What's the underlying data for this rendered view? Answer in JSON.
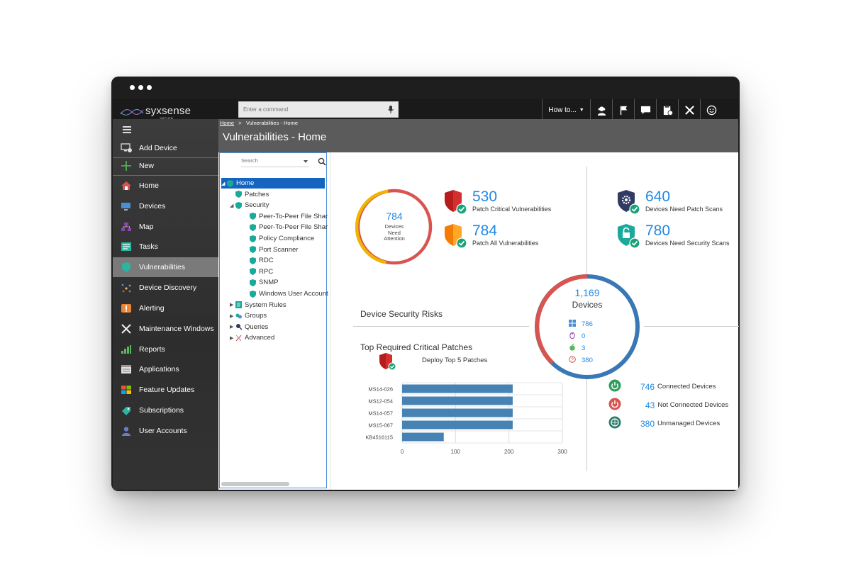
{
  "app": {
    "logo": "syxsense",
    "logo_sub": "secure"
  },
  "command": {
    "placeholder": "Enter a command"
  },
  "toolbar": {
    "howto_label": "How to...",
    "icons": [
      "support-icon",
      "flag-icon",
      "chat-icon",
      "clipboard-icon",
      "tools-icon",
      "smiley-icon"
    ]
  },
  "sidebar": {
    "items": [
      {
        "label": "Add Device",
        "icon": "monitor-add-icon"
      },
      {
        "label": "New",
        "icon": "plus-icon"
      },
      {
        "label": "Home",
        "icon": "home-icon"
      },
      {
        "label": "Devices",
        "icon": "devices-icon"
      },
      {
        "label": "Map",
        "icon": "map-icon"
      },
      {
        "label": "Tasks",
        "icon": "tasks-icon"
      },
      {
        "label": "Vulnerabilities",
        "icon": "shield-icon"
      },
      {
        "label": "Device Discovery",
        "icon": "discovery-icon"
      },
      {
        "label": "Alerting",
        "icon": "alert-icon"
      },
      {
        "label": "Maintenance Windows",
        "icon": "maintenance-icon"
      },
      {
        "label": "Reports",
        "icon": "reports-icon"
      },
      {
        "label": "Applications",
        "icon": "applications-icon"
      },
      {
        "label": "Feature Updates",
        "icon": "windows-icon"
      },
      {
        "label": "Subscriptions",
        "icon": "subscriptions-icon"
      },
      {
        "label": "User Accounts",
        "icon": "user-icon"
      }
    ],
    "active": "Vulnerabilities"
  },
  "breadcrumb": {
    "home": "Home",
    "sep": ">",
    "current": "Vulnerabilities - Home"
  },
  "page_title": "Vulnerabilities - Home",
  "tree": {
    "search_placeholder": "Search",
    "nodes": [
      {
        "label": "Home",
        "level": 0,
        "selected": true,
        "expanded": true
      },
      {
        "label": "Patches",
        "level": 1
      },
      {
        "label": "Security",
        "level": 1,
        "expanded": true
      },
      {
        "label": "Peer-To-Peer File Shar",
        "level": 2
      },
      {
        "label": "Peer-To-Peer File Shar",
        "level": 2
      },
      {
        "label": "Policy Compliance",
        "level": 2
      },
      {
        "label": "Port Scanner",
        "level": 2
      },
      {
        "label": "RDC",
        "level": 2
      },
      {
        "label": "RPC",
        "level": 2
      },
      {
        "label": "SNMP",
        "level": 2
      },
      {
        "label": "Windows User Account",
        "level": 2
      },
      {
        "label": "System Rules",
        "level": 1,
        "collapsed": true
      },
      {
        "label": "Groups",
        "level": 1,
        "collapsed": true
      },
      {
        "label": "Queries",
        "level": 1,
        "collapsed": true
      },
      {
        "label": "Advanced",
        "level": 1,
        "collapsed": true
      }
    ]
  },
  "attention_ring": {
    "value": "784",
    "label_line1": "Devices",
    "label_line2": "Need",
    "label_line3": "Attention"
  },
  "stats": {
    "critical": {
      "value": "530",
      "label": "Patch Critical Vulnerabilities"
    },
    "all": {
      "value": "784",
      "label": "Patch All Vulnerabilities"
    },
    "patch_scans": {
      "value": "640",
      "label": "Devices Need Patch Scans"
    },
    "security_scans": {
      "value": "780",
      "label": "Devices Need Security Scans"
    }
  },
  "device_security_risks": "Device Security Risks",
  "devices_ring": {
    "total": "1,169",
    "label": "Devices",
    "os": [
      {
        "icon": "windows-icon",
        "value": "786"
      },
      {
        "icon": "linux-icon",
        "value": "0"
      },
      {
        "icon": "apple-icon",
        "value": "3"
      },
      {
        "icon": "unknown-icon",
        "value": "380"
      }
    ]
  },
  "connections": [
    {
      "value": "746",
      "label": "Connected Devices",
      "color": "#2e9e5b"
    },
    {
      "value": "43",
      "label": "Not Connected Devices",
      "color": "#d9534f"
    },
    {
      "value": "380",
      "label": "Unmanaged Devices",
      "color": "#2e7d6b"
    }
  ],
  "patches": {
    "title": "Top Required Critical Patches",
    "deploy_label": "Deploy Top 5 Patches"
  },
  "chart_data": {
    "type": "bar",
    "orientation": "horizontal",
    "categories": [
      "MS14-026",
      "MS12-054",
      "MS14-057",
      "MS15-067",
      "KB4516115"
    ],
    "values": [
      207,
      207,
      207,
      207,
      78
    ],
    "xlim": [
      0,
      300
    ],
    "xticks": [
      0,
      100,
      200,
      300
    ],
    "grid": true,
    "bar_color": "#4682b4"
  },
  "colors": {
    "accent": "#1e88e5",
    "sidebar_active": "#7a7a7a",
    "ring_red": "#d9534f",
    "ring_yellow": "#f0b400",
    "ring_blue": "#3a78b5"
  }
}
